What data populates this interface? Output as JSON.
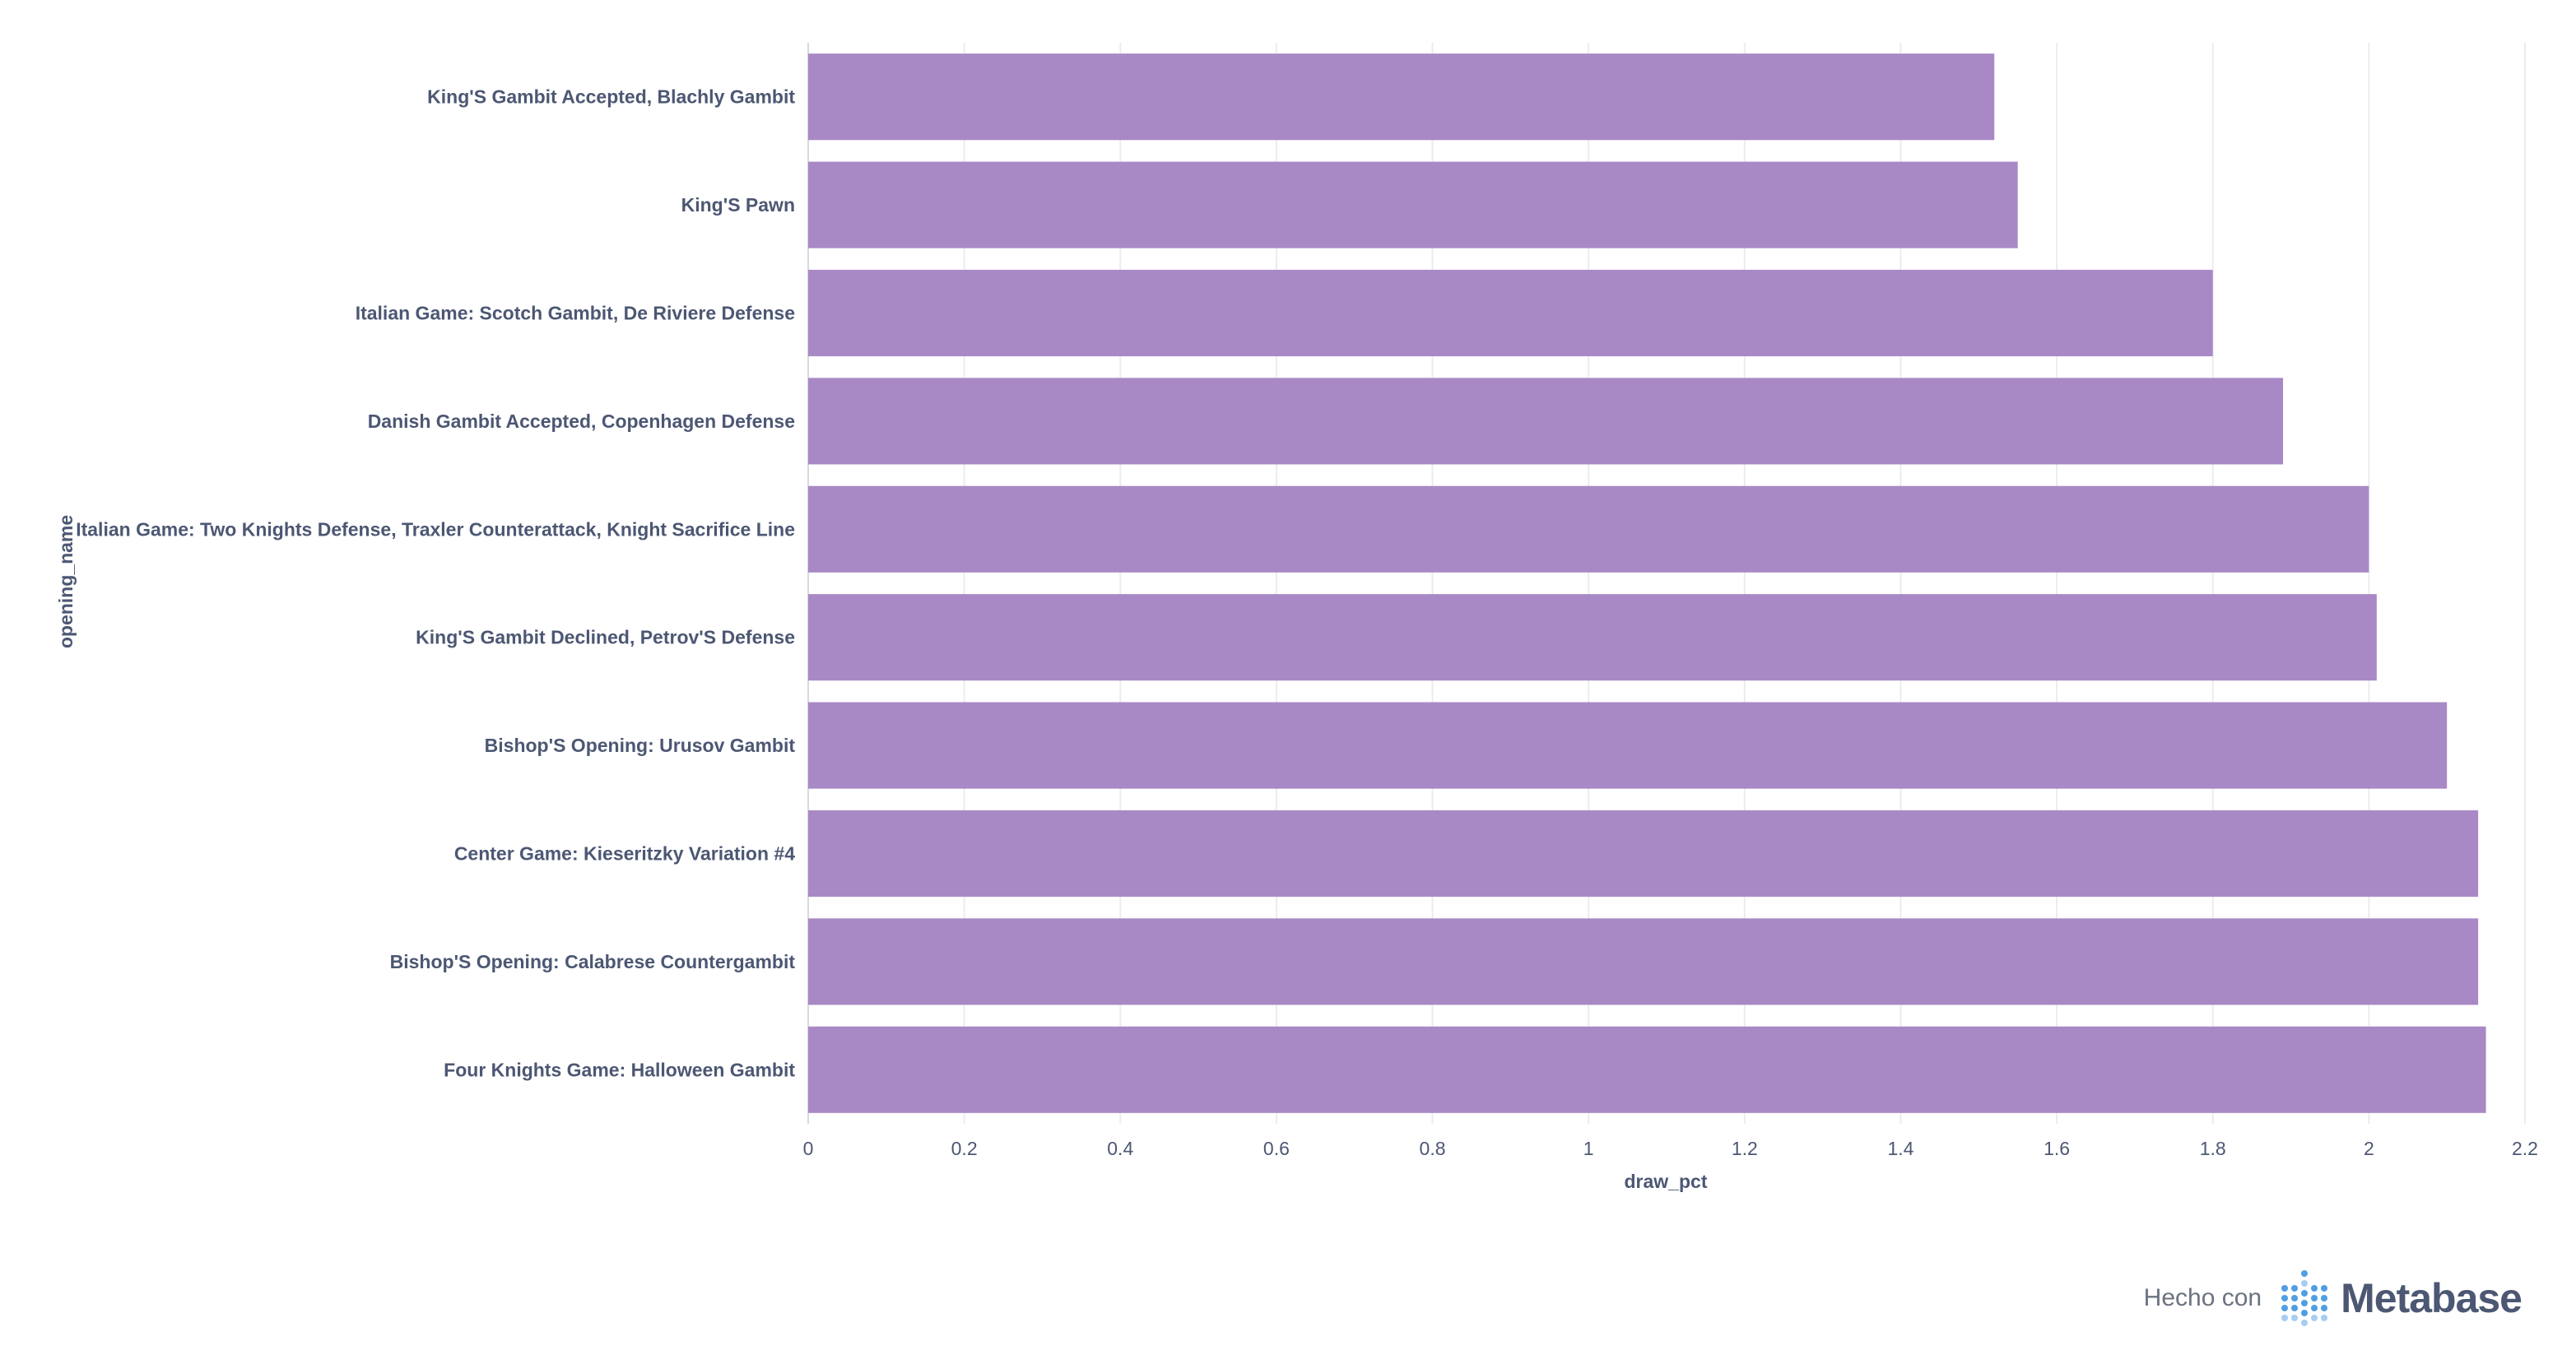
{
  "chart_data": {
    "type": "bar",
    "orientation": "horizontal",
    "categories": [
      "King'S Gambit Accepted, Blachly Gambit",
      "King'S Pawn",
      "Italian Game: Scotch Gambit, De Riviere Defense",
      "Danish Gambit Accepted, Copenhagen Defense",
      "Italian Game: Two Knights Defense, Traxler Counterattack, Knight Sacrifice Line",
      "King'S Gambit Declined, Petrov'S Defense",
      "Bishop'S Opening: Urusov Gambit",
      "Center Game: Kieseritzky Variation #4",
      "Bishop'S Opening: Calabrese Countergambit",
      "Four Knights Game: Halloween Gambit"
    ],
    "values": [
      1.52,
      1.55,
      1.8,
      1.89,
      2.0,
      2.01,
      2.1,
      2.14,
      2.14,
      2.15
    ],
    "xlabel": "draw_pct",
    "ylabel": "opening_name",
    "xlim": [
      0,
      2.2
    ],
    "xticks": [
      "0",
      "0.2",
      "0.4",
      "0.6",
      "0.8",
      "1",
      "1.2",
      "1.4",
      "1.6",
      "1.8",
      "2",
      "2.2"
    ],
    "grid": true,
    "bar_color": "#a989c5"
  },
  "footer": {
    "made_with": "Hecho con",
    "brand": "Metabase"
  },
  "colors": {
    "text": "#4c5773",
    "grid": "#ececf0",
    "logo_dots": "#509ee3"
  }
}
